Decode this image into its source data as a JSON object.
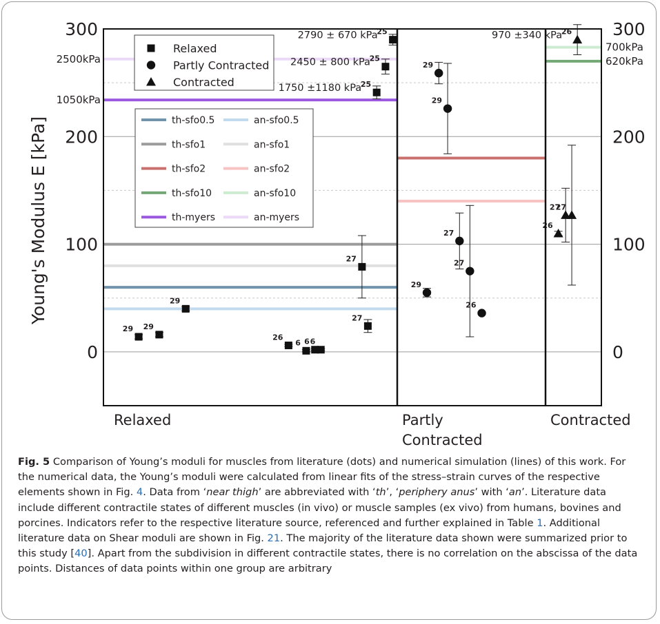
{
  "chart_data": {
    "type": "scatter",
    "ylabel": "Young's Modulus E [kPa]",
    "ylim": [
      -50,
      300
    ],
    "y_ticks": [
      "0",
      "100",
      "200",
      "300"
    ],
    "y_tick_values": [
      0,
      100,
      200,
      300
    ],
    "groups": [
      "Relaxed",
      "Partly Contracted",
      "Contracted"
    ],
    "group_labels": [
      "Relaxed",
      "Partly\nContracted",
      "Contracted"
    ],
    "legend_markers": [
      {
        "name": "Relaxed",
        "shape": "square"
      },
      {
        "name": "Partly Contracted",
        "shape": "circle"
      },
      {
        "name": "Contracted",
        "shape": "triangle"
      }
    ],
    "lines": [
      {
        "name": "th-sfo0.5",
        "color": "#7193ac",
        "values": [
          60,
          null,
          null
        ]
      },
      {
        "name": "an-sfo0.5",
        "color": "#c2daee",
        "values": [
          40,
          null,
          null
        ]
      },
      {
        "name": "th-sfo1",
        "color": "#9b9b9b",
        "values": [
          100,
          null,
          null
        ]
      },
      {
        "name": "an-sfo1",
        "color": "#e0e0e0",
        "values": [
          80,
          null,
          null
        ]
      },
      {
        "name": "th-sfo2",
        "color": "#c9706d",
        "values": [
          null,
          180,
          null
        ]
      },
      {
        "name": "an-sfo2",
        "color": "#f7c3c3",
        "values": [
          null,
          140,
          null
        ]
      },
      {
        "name": "th-sfo10",
        "color": "#73a875",
        "values": [
          null,
          null,
          270
        ]
      },
      {
        "name": "an-sfo10",
        "color": "#cdebd0",
        "values": [
          null,
          null,
          283
        ]
      },
      {
        "name": "th-myers",
        "color": "#9b59e0",
        "values": [
          234,
          null,
          null
        ]
      },
      {
        "name": "an-myers",
        "color": "#ecd9f7",
        "values": [
          272,
          null,
          null
        ]
      }
    ],
    "line_value_labels": [
      {
        "text": "2500kPa",
        "side": "left",
        "y": 272
      },
      {
        "text": "1050kPa",
        "side": "left",
        "y": 234
      },
      {
        "text": "700kPa",
        "side": "right",
        "y": 283
      },
      {
        "text": "620kPa",
        "side": "right",
        "y": 270
      }
    ],
    "points": [
      {
        "group": 0,
        "order": 0.12,
        "shape": "square",
        "y": 14,
        "err": 2,
        "ref": "29"
      },
      {
        "group": 0,
        "order": 0.19,
        "shape": "square",
        "y": 16,
        "err": 2,
        "ref": "29"
      },
      {
        "group": 0,
        "order": 0.28,
        "shape": "square",
        "y": 40,
        "err": 2,
        "ref": "29"
      },
      {
        "group": 0,
        "order": 0.63,
        "shape": "square",
        "y": 6,
        "err": 1,
        "ref": "26"
      },
      {
        "group": 0,
        "order": 0.69,
        "shape": "square",
        "y": 1,
        "err": 1,
        "ref": "6"
      },
      {
        "group": 0,
        "order": 0.72,
        "shape": "square",
        "y": 2,
        "err": 1,
        "ref": "6"
      },
      {
        "group": 0,
        "order": 0.74,
        "shape": "square",
        "y": 2,
        "err": 1,
        "ref": "6"
      },
      {
        "group": 0,
        "order": 0.88,
        "shape": "square",
        "y": 79,
        "err": 29,
        "ref": "27"
      },
      {
        "group": 0,
        "order": 0.9,
        "shape": "square",
        "y": 24,
        "err": 6,
        "ref": "27"
      },
      {
        "group": 0,
        "order": 0.93,
        "shape": "square",
        "y": 241,
        "err": 6,
        "ref": "25",
        "label": "1750 ±1180 kPa"
      },
      {
        "group": 0,
        "order": 0.96,
        "shape": "square",
        "y": 265,
        "err": 7,
        "ref": "25",
        "label": "2450 ± 800 kPa"
      },
      {
        "group": 0,
        "order": 0.985,
        "shape": "square",
        "y": 290,
        "err": 5,
        "ref": "25",
        "label": "2790 ± 670 kPa"
      },
      {
        "group": 1,
        "order": 0.28,
        "shape": "circle",
        "y": 259,
        "err": 10,
        "ref": "29"
      },
      {
        "group": 1,
        "order": 0.34,
        "shape": "circle",
        "y": 226,
        "err": 42,
        "ref": "29"
      },
      {
        "group": 1,
        "order": 0.2,
        "shape": "circle",
        "y": 55,
        "err": 4,
        "ref": "29"
      },
      {
        "group": 1,
        "order": 0.42,
        "shape": "circle",
        "y": 103,
        "err": 26,
        "ref": "27"
      },
      {
        "group": 1,
        "order": 0.49,
        "shape": "circle",
        "y": 75,
        "err": 61,
        "ref": "27"
      },
      {
        "group": 1,
        "order": 0.57,
        "shape": "circle",
        "y": 36,
        "err": 1,
        "ref": "26"
      },
      {
        "group": 2,
        "order": 0.23,
        "shape": "triangle",
        "y": 110,
        "err": 2,
        "ref": "26"
      },
      {
        "group": 2,
        "order": 0.36,
        "shape": "triangle",
        "y": 127,
        "err": 25,
        "ref": "27"
      },
      {
        "group": 2,
        "order": 0.47,
        "shape": "triangle",
        "y": 127,
        "err": 65,
        "ref": "27"
      },
      {
        "group": 2,
        "order": 0.57,
        "shape": "triangle",
        "y": 290,
        "err": 14,
        "ref": "26",
        "label": "970 ±340 kPa"
      }
    ]
  },
  "caption": {
    "fig_label": "Fig. 5",
    "p1": "  Comparison of Young’s moduli for muscles from literature (dots) and numerical simulation (lines) of this work. For the numerical data, the Young’s moduli were calculated from linear fits of the stress–strain curves of the respective elements shown in Fig. ",
    "ref_fig4": "4",
    "p2": ". Data from ‘",
    "em_near_thigh": "near thigh",
    "p3": "’ are abbreviated with ‘",
    "em_th": "th",
    "p4": "’, ‘",
    "em_periphery": "periphery anus",
    "p5": "’ with ‘",
    "em_an": "an",
    "p6": "’. Literature data include different contractile states of different muscles (in vivo) or muscle samples (ex vivo) from humans, bovines and porcines. Indicators refer to the respective literature source, referenced and further explained in Table ",
    "ref_table1": "1",
    "p7": ". Additional literature data on Shear moduli are shown in Fig. ",
    "ref_fig21": "21",
    "p8": ". The majority of the literature data shown were summarized prior to this study [",
    "ref_40": "40",
    "p9": "]. Apart from the subdivision in different contractile states, there is no correlation on the abscissa of the data points. Distances of data points within one group are arbitrary"
  }
}
